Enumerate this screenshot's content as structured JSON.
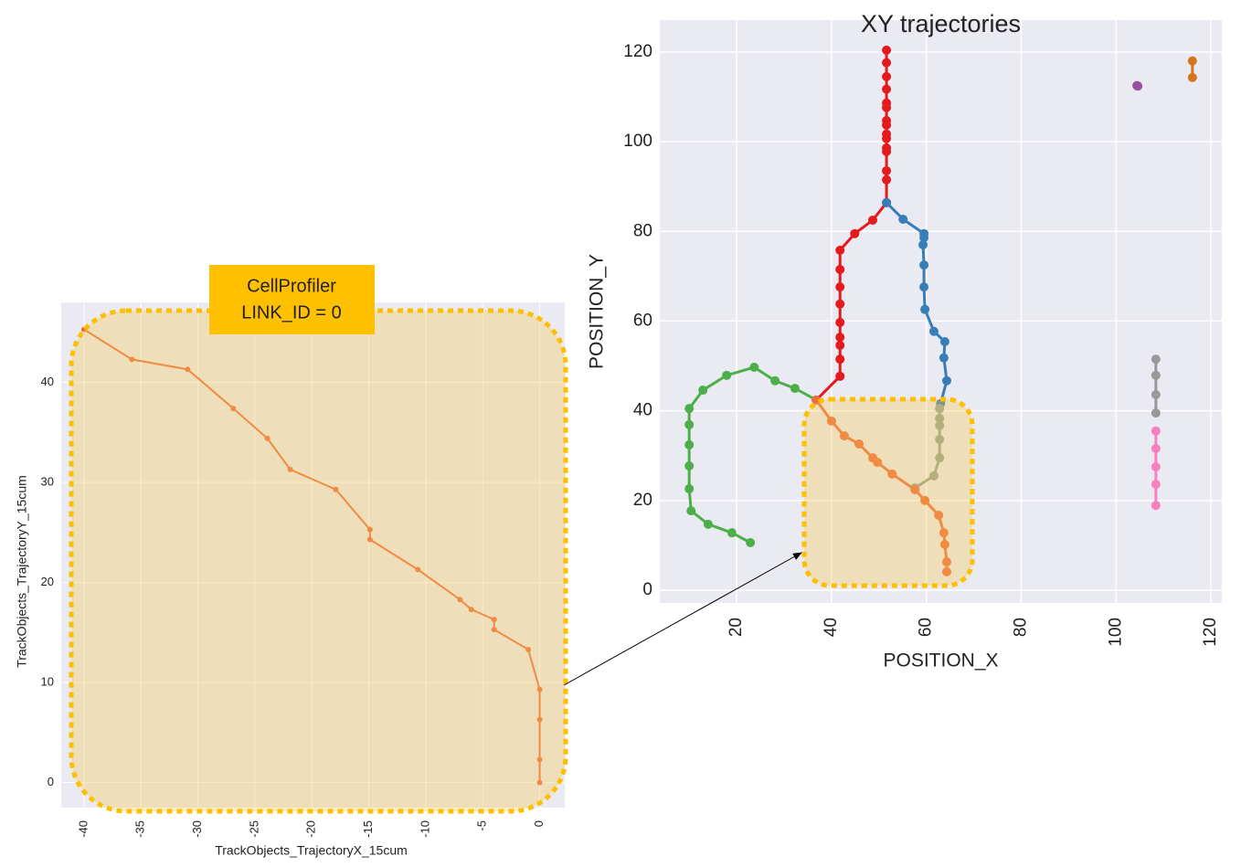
{
  "chart_data": [
    {
      "type": "line",
      "xlabel": "TrackObjects_TrajectoryX_15cum",
      "ylabel": "TrackObjects_TrajectoryY_15cum",
      "xlim": [
        -42,
        2.2
      ],
      "ylim": [
        -2.5,
        48
      ],
      "xticks": [
        -40,
        -35,
        -30,
        -25,
        -20,
        -15,
        -10,
        -5,
        0
      ],
      "yticks": [
        0,
        10,
        20,
        30,
        40
      ],
      "grid": true,
      "series": [
        {
          "color": "#ee6a3c",
          "x": [
            -40,
            -35.8,
            -30.9,
            -26.9,
            -23.9,
            -21.9,
            -17.9,
            -14.9,
            -14.9,
            -10.7,
            -7.0,
            -6.0,
            -4.0,
            -4.0,
            -1.0,
            0,
            0,
            0,
            0
          ],
          "values": [
            45.3,
            42.3,
            41.3,
            37.4,
            34.4,
            31.3,
            29.3,
            25.3,
            24.3,
            21.3,
            18.3,
            17.3,
            16.3,
            15.3,
            13.3,
            9.3,
            6.3,
            2.3,
            0
          ]
        }
      ]
    },
    {
      "type": "line",
      "title": "XY trajectories",
      "xlabel": "POSITION_X",
      "ylabel": "POSITION_Y",
      "xlim": [
        3.8,
        122.3
      ],
      "ylim": [
        -2.85,
        127.1
      ],
      "xticks": [
        20,
        40,
        60,
        80,
        100,
        120
      ],
      "yticks": [
        0,
        20,
        40,
        60,
        80,
        100,
        120
      ],
      "grid": true,
      "series": [
        {
          "color": "#e41a1c",
          "x": [
            51.6,
            51.6,
            51.6,
            51.6,
            51.6,
            51.6,
            51.6,
            51.6,
            51.6,
            51.6,
            51.6,
            51.6,
            51.6,
            51.6,
            51.6,
            48.7,
            44.9,
            41.8,
            41.8,
            41.8,
            41.8,
            41.8,
            41.8,
            41.8,
            41.8,
            41.8,
            36.8
          ],
          "values": [
            120.4,
            117.6,
            114.5,
            111.7,
            108.6,
            107.6,
            104.7,
            103.7,
            101.7,
            100.7,
            98.6,
            97.8,
            93.5,
            91.5,
            86.4,
            82.5,
            79.5,
            75.8,
            71.5,
            67.6,
            63.8,
            59.7,
            56.4,
            54.6,
            51.5,
            47.7,
            42.4
          ]
        },
        {
          "color": "#377eb8",
          "x": [
            51.6,
            55.1,
            59.5,
            59.5,
            59.3,
            59.5,
            59.5,
            59.7,
            61.6,
            63.9,
            63.7,
            64.3,
            63.0
          ],
          "values": [
            86.4,
            82.7,
            79.5,
            78.6,
            77.0,
            72.5,
            67.6,
            62.6,
            57.7,
            55.4,
            51.8,
            46.7,
            41.6
          ]
        },
        {
          "color": "#93a095",
          "x": [
            62.8,
            62.8,
            62.8,
            62.8,
            62.8,
            61.6,
            57.6
          ],
          "values": [
            40.5,
            38.3,
            36.7,
            33.6,
            29.5,
            25.5,
            22.8
          ]
        },
        {
          "color": "#4daf4a",
          "x": [
            36.8,
            32.3,
            28.1,
            23.7,
            17.9,
            12.9,
            10.0,
            10.0,
            10.0,
            10.0,
            10.0,
            10.4,
            14.0,
            19.0,
            22.9
          ],
          "values": [
            42.4,
            45.0,
            46.7,
            49.7,
            47.9,
            44.6,
            40.5,
            36.9,
            32.4,
            27.7,
            22.6,
            17.7,
            14.7,
            12.8,
            10.6
          ]
        },
        {
          "color": "#ee6a3c",
          "x": [
            36.8,
            40.0,
            42.7,
            45.8,
            48.7,
            49.7,
            52.8,
            57.6,
            59.7,
            62.6,
            63.7,
            63.9,
            64.3,
            64.3
          ],
          "values": [
            42.4,
            37.7,
            34.4,
            32.6,
            29.5,
            28.5,
            25.9,
            22.4,
            20.0,
            16.7,
            12.8,
            10.2,
            6.3,
            4.1
          ]
        },
        {
          "color": "#999999",
          "x": [
            108.4,
            108.4,
            108.4,
            108.4
          ],
          "values": [
            51.5,
            47.9,
            43.6,
            39.5
          ]
        },
        {
          "color": "#f781bf",
          "x": [
            108.4,
            108.4,
            108.4,
            108.4,
            108.4
          ],
          "values": [
            35.5,
            31.6,
            27.5,
            23.6,
            18.9
          ]
        },
        {
          "color": "#984ea3",
          "x": [
            104.4,
            104.6
          ],
          "values": [
            112.5,
            112.4
          ]
        },
        {
          "color": "#d2771e",
          "x": [
            116.1,
            116.1
          ],
          "values": [
            118.0,
            114.3
          ]
        }
      ]
    }
  ],
  "annotation": {
    "lines": [
      "CellProfiler",
      "LINK_ID = 0"
    ]
  }
}
